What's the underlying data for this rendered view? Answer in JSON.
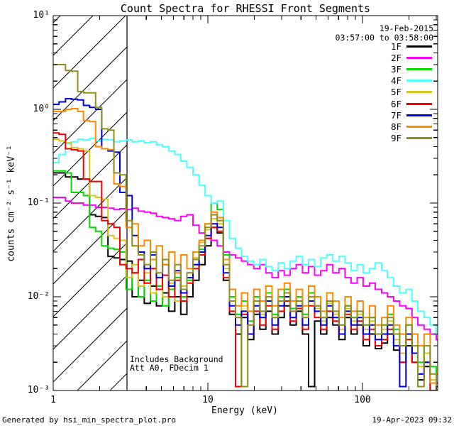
{
  "title": "Count Spectra for RHESSI Front Segments",
  "header": {
    "date": "19-Feb-2015",
    "time_range": "03:57:00 to 03:58:00"
  },
  "axes": {
    "x": {
      "label": "Energy (keV)",
      "scale": "log",
      "ticks": [
        {
          "value": 1,
          "label": "1"
        },
        {
          "value": 10,
          "label": "10"
        },
        {
          "value": 100,
          "label": "100"
        }
      ]
    },
    "y": {
      "label": "counts cm⁻² s⁻¹ keV⁻¹",
      "scale": "log",
      "ticks": [
        {
          "value": 10,
          "label": "10¹"
        },
        {
          "value": 1,
          "label": "10⁰"
        },
        {
          "value": 0.1,
          "label": "10⁻¹"
        },
        {
          "value": 0.01,
          "label": "10⁻²"
        },
        {
          "value": 0.001,
          "label": "10⁻³"
        }
      ]
    }
  },
  "annotations": {
    "line1": "Includes Background",
    "line2": "Att A0, FDecim 1",
    "hatched_region_kev": [
      1,
      3
    ]
  },
  "footer": {
    "left": "Generated by hsi_min_spectra_plot.pro",
    "right": "19-Apr-2023 09:32"
  },
  "chart_data": {
    "type": "line",
    "style": "histogram-step",
    "title": "Count Spectra for RHESSI Front Segments",
    "xlabel": "Energy (keV)",
    "ylabel": "counts cm^-2 s^-1 keV^-1",
    "x_scale": "log",
    "y_scale": "log",
    "xlim": [
      1,
      306
    ],
    "ylim": [
      0.001,
      10
    ],
    "legend_position": "top-right",
    "x_kev": [
      1.0,
      1.09,
      1.2,
      1.31,
      1.44,
      1.57,
      1.72,
      1.88,
      2.06,
      2.26,
      2.47,
      2.7,
      2.96,
      3.24,
      3.55,
      3.88,
      4.25,
      4.65,
      5.09,
      5.58,
      6.11,
      6.68,
      7.32,
      8.01,
      8.77,
      9.6,
      10.5,
      11.5,
      12.6,
      13.8,
      15.1,
      16.5,
      18.1,
      19.8,
      21.7,
      23.7,
      26.0,
      28.5,
      31.2,
      34.1,
      37.3,
      40.9,
      44.8,
      49.0,
      53.7,
      58.7,
      64.3,
      70.4,
      77.1,
      84.4,
      92.4,
      101,
      111,
      121,
      133,
      145,
      159,
      174,
      191,
      209,
      228,
      250,
      274,
      300
    ],
    "series": [
      {
        "name": "1F",
        "color": "#000000",
        "values": [
          0.21,
          0.21,
          0.19,
          0.19,
          0.18,
          0.18,
          0.075,
          0.072,
          0.07,
          0.027,
          0.026,
          0.025,
          0.024,
          0.01,
          0.015,
          0.0085,
          0.013,
          0.008,
          0.011,
          0.007,
          0.01,
          0.0065,
          0.01,
          0.015,
          0.022,
          0.035,
          0.055,
          0.048,
          0.015,
          0.0065,
          0.004,
          0.006,
          0.0035,
          0.0065,
          0.0045,
          0.007,
          0.004,
          0.006,
          0.008,
          0.005,
          0.007,
          0.004,
          0.0011,
          0.0055,
          0.004,
          0.006,
          0.005,
          0.0035,
          0.006,
          0.004,
          0.005,
          0.003,
          0.004,
          0.0028,
          0.0032,
          0.004,
          0.0027,
          0.002,
          0.003,
          0.002,
          0.0013,
          0.0018,
          0.001,
          0.0011
        ]
      },
      {
        "name": "2F",
        "color": "#ff00ff",
        "values": [
          0.115,
          0.115,
          0.105,
          0.1,
          0.1,
          0.095,
          0.095,
          0.09,
          0.09,
          0.088,
          0.085,
          0.087,
          0.085,
          0.088,
          0.082,
          0.08,
          0.078,
          0.072,
          0.07,
          0.068,
          0.065,
          0.072,
          0.075,
          0.058,
          0.048,
          0.042,
          0.04,
          0.035,
          0.03,
          0.028,
          0.026,
          0.024,
          0.022,
          0.02,
          0.022,
          0.018,
          0.016,
          0.019,
          0.017,
          0.02,
          0.022,
          0.018,
          0.021,
          0.017,
          0.019,
          0.022,
          0.018,
          0.02,
          0.016,
          0.014,
          0.016,
          0.013,
          0.014,
          0.012,
          0.011,
          0.01,
          0.009,
          0.008,
          0.0075,
          0.006,
          0.005,
          0.0045,
          0.004,
          0.0035
        ]
      },
      {
        "name": "3F",
        "color": "#00dc00",
        "values": [
          0.22,
          0.22,
          0.21,
          0.13,
          0.13,
          0.12,
          0.055,
          0.05,
          0.035,
          0.033,
          0.032,
          0.03,
          0.012,
          0.018,
          0.01,
          0.015,
          0.009,
          0.013,
          0.008,
          0.012,
          0.016,
          0.01,
          0.015,
          0.022,
          0.032,
          0.06,
          0.1,
          0.085,
          0.028,
          0.01,
          0.0065,
          0.009,
          0.0055,
          0.01,
          0.007,
          0.011,
          0.0065,
          0.01,
          0.012,
          0.0075,
          0.01,
          0.0065,
          0.011,
          0.008,
          0.006,
          0.009,
          0.007,
          0.005,
          0.008,
          0.006,
          0.007,
          0.005,
          0.006,
          0.004,
          0.005,
          0.0065,
          0.0045,
          0.003,
          0.005,
          0.003,
          0.002,
          0.003,
          0.0018,
          0.0012
        ]
      },
      {
        "name": "4F",
        "color": "#4dffff",
        "values": [
          0.27,
          0.33,
          0.43,
          0.45,
          0.48,
          0.47,
          0.49,
          0.46,
          0.48,
          0.47,
          0.45,
          0.46,
          0.47,
          0.45,
          0.46,
          0.44,
          0.45,
          0.42,
          0.4,
          0.36,
          0.33,
          0.28,
          0.24,
          0.2,
          0.155,
          0.12,
          0.1,
          0.105,
          0.065,
          0.042,
          0.033,
          0.027,
          0.024,
          0.022,
          0.025,
          0.021,
          0.019,
          0.023,
          0.02,
          0.024,
          0.027,
          0.022,
          0.025,
          0.021,
          0.026,
          0.028,
          0.024,
          0.027,
          0.023,
          0.019,
          0.022,
          0.018,
          0.02,
          0.023,
          0.019,
          0.016,
          0.013,
          0.011,
          0.012,
          0.009,
          0.007,
          0.006,
          0.005,
          0.004
        ]
      },
      {
        "name": "5F",
        "color": "#d8c422",
        "values": [
          0.48,
          0.46,
          0.44,
          0.39,
          0.38,
          0.36,
          0.12,
          0.115,
          0.11,
          0.045,
          0.042,
          0.04,
          0.016,
          0.022,
          0.013,
          0.018,
          0.011,
          0.016,
          0.01,
          0.014,
          0.009,
          0.013,
          0.018,
          0.026,
          0.038,
          0.052,
          0.068,
          0.06,
          0.02,
          0.009,
          0.006,
          0.008,
          0.005,
          0.009,
          0.0065,
          0.01,
          0.006,
          0.009,
          0.011,
          0.007,
          0.009,
          0.006,
          0.01,
          0.0075,
          0.0055,
          0.0085,
          0.0065,
          0.0045,
          0.0075,
          0.0055,
          0.0065,
          0.0045,
          0.0055,
          0.0035,
          0.0045,
          0.0055,
          0.0035,
          0.0025,
          0.004,
          0.0025,
          0.0018,
          0.0025,
          0.0013,
          0.001
        ]
      },
      {
        "name": "6F",
        "color": "#ee0000",
        "values": [
          0.56,
          0.54,
          0.38,
          0.37,
          0.36,
          0.18,
          0.17,
          0.17,
          0.065,
          0.06,
          0.055,
          0.022,
          0.02,
          0.018,
          0.025,
          0.014,
          0.02,
          0.012,
          0.017,
          0.01,
          0.015,
          0.009,
          0.014,
          0.02,
          0.028,
          0.042,
          0.055,
          0.05,
          0.016,
          0.007,
          0.0011,
          0.0065,
          0.004,
          0.007,
          0.005,
          0.008,
          0.0045,
          0.007,
          0.009,
          0.0055,
          0.0075,
          0.0045,
          0.008,
          0.006,
          0.0045,
          0.007,
          0.0055,
          0.004,
          0.0065,
          0.0045,
          0.0055,
          0.0035,
          0.0045,
          0.003,
          0.0035,
          0.0045,
          0.003,
          0.002,
          0.0035,
          0.002,
          0.0015,
          0.002,
          0.001,
          0.0012
        ]
      },
      {
        "name": "7F",
        "color": "#0000dd",
        "values": [
          1.13,
          1.2,
          1.3,
          1.28,
          1.26,
          1.1,
          1.05,
          1.0,
          0.38,
          0.36,
          0.35,
          0.13,
          0.12,
          0.045,
          0.03,
          0.02,
          0.028,
          0.016,
          0.022,
          0.013,
          0.019,
          0.011,
          0.016,
          0.022,
          0.03,
          0.045,
          0.06,
          0.055,
          0.018,
          0.008,
          0.005,
          0.007,
          0.004,
          0.008,
          0.006,
          0.009,
          0.005,
          0.008,
          0.01,
          0.006,
          0.008,
          0.005,
          0.009,
          0.007,
          0.005,
          0.008,
          0.006,
          0.004,
          0.007,
          0.005,
          0.006,
          0.004,
          0.005,
          0.0035,
          0.004,
          0.005,
          0.003,
          0.0011,
          0.004,
          0.0025,
          0.0015,
          0.002,
          0.0012,
          0.001
        ]
      },
      {
        "name": "8F",
        "color": "#ff8800",
        "values": [
          0.95,
          0.95,
          1.0,
          1.02,
          0.95,
          0.76,
          0.74,
          0.4,
          0.38,
          0.37,
          0.16,
          0.15,
          0.055,
          0.06,
          0.035,
          0.04,
          0.025,
          0.035,
          0.022,
          0.03,
          0.018,
          0.028,
          0.02,
          0.03,
          0.04,
          0.06,
          0.08,
          0.07,
          0.025,
          0.012,
          0.008,
          0.011,
          0.007,
          0.012,
          0.009,
          0.013,
          0.008,
          0.012,
          0.014,
          0.009,
          0.012,
          0.008,
          0.013,
          0.01,
          0.007,
          0.011,
          0.009,
          0.006,
          0.01,
          0.007,
          0.009,
          0.006,
          0.008,
          0.005,
          0.006,
          0.008,
          0.005,
          0.004,
          0.006,
          0.004,
          0.003,
          0.004,
          0.0012,
          0.0015
        ]
      },
      {
        "name": "9F",
        "color": "#8e8e20",
        "values": [
          3.0,
          3.0,
          2.6,
          2.55,
          1.55,
          1.5,
          1.5,
          1.05,
          0.62,
          0.6,
          0.21,
          0.2,
          0.065,
          0.035,
          0.028,
          0.022,
          0.03,
          0.018,
          0.025,
          0.015,
          0.022,
          0.012,
          0.018,
          0.025,
          0.035,
          0.055,
          0.075,
          0.065,
          0.022,
          0.009,
          0.006,
          0.0011,
          0.005,
          0.009,
          0.007,
          0.01,
          0.006,
          0.009,
          0.011,
          0.007,
          0.009,
          0.006,
          0.01,
          0.008,
          0.006,
          0.009,
          0.007,
          0.005,
          0.008,
          0.006,
          0.007,
          0.005,
          0.006,
          0.004,
          0.005,
          0.006,
          0.004,
          0.003,
          0.005,
          0.003,
          0.0011,
          0.003,
          0.0015,
          0.001
        ]
      }
    ]
  }
}
